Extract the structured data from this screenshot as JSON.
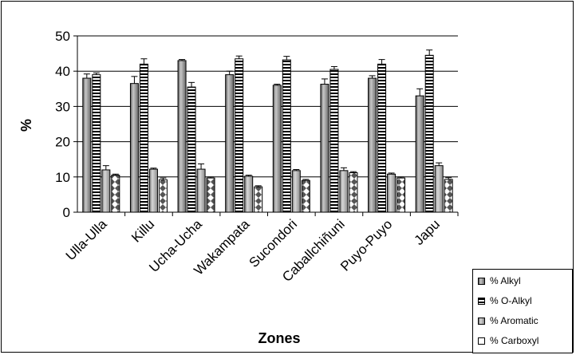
{
  "chart_data": {
    "type": "bar",
    "title": "",
    "xlabel": "Zones",
    "ylabel": "%",
    "ylim": [
      0,
      50
    ],
    "yticks": [
      0,
      10,
      20,
      30,
      40,
      50
    ],
    "grid": true,
    "legend_position": "bottom-right",
    "categories": [
      "Ulla-Ulla",
      "Killu",
      "Ucha-Ucha",
      "Wakampata",
      "Sucondori",
      "Caballchiñuni",
      "Puyo-Puyo",
      "Japu"
    ],
    "series": [
      {
        "name": "% Alkyl",
        "values": [
          38,
          36.5,
          43,
          39,
          36,
          36.3,
          38,
          33
        ],
        "errors": [
          1.2,
          2.0,
          0.3,
          1.0,
          0.3,
          1.5,
          0.7,
          2.0
        ],
        "color": "#808080",
        "pattern": "solid"
      },
      {
        "name": "% O-Alkyl",
        "values": [
          39,
          42,
          35.5,
          43.5,
          43.2,
          40.5,
          42,
          44.5
        ],
        "errors": [
          0.5,
          1.5,
          1.3,
          0.8,
          1.0,
          0.8,
          1.3,
          1.5
        ],
        "color": "#000000",
        "pattern": "horizontal-stripes"
      },
      {
        "name": "% Aromatic",
        "values": [
          12,
          12.2,
          12.2,
          10.2,
          11.8,
          11.8,
          10.8,
          13.2
        ],
        "errors": [
          1.2,
          0.3,
          1.5,
          0.3,
          0.3,
          0.8,
          0.3,
          0.8
        ],
        "color": "#a0a0a0",
        "pattern": "solid"
      },
      {
        "name": "% Carboxyl",
        "values": [
          10.5,
          9.2,
          9.7,
          7.2,
          9,
          11.2,
          9.7,
          9.3
        ],
        "errors": [
          0.3,
          0.5,
          0.3,
          0.3,
          0.3,
          0.3,
          0.3,
          0.5
        ],
        "color": "#ffffff",
        "pattern": "diamond-checker"
      }
    ]
  }
}
